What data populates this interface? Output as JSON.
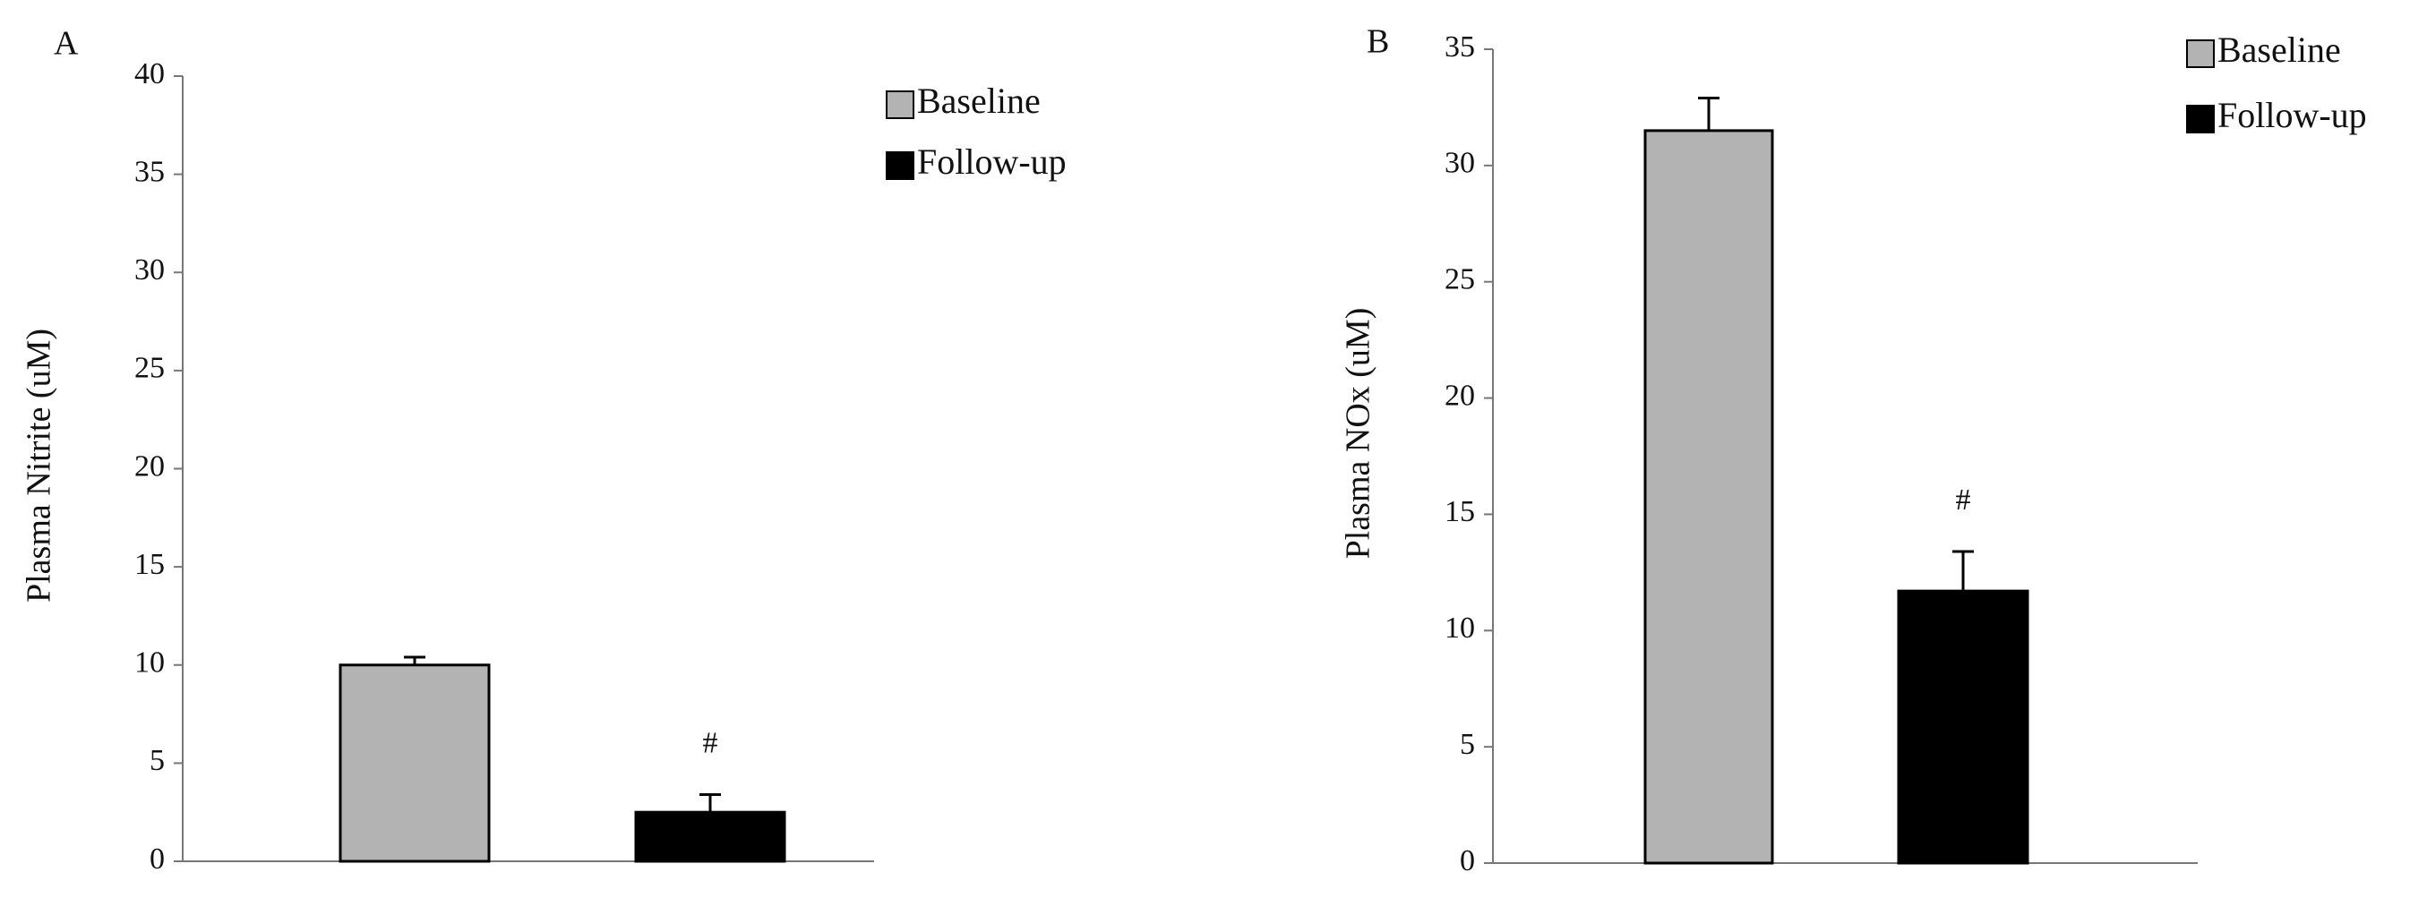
{
  "chart_data": [
    {
      "type": "bar",
      "panel_label": "A",
      "y_label": "Plasma Nitrite (uM)",
      "categories": [
        null
      ],
      "series": [
        {
          "name": "Baseline",
          "color": "#b3b3b3",
          "values": [
            10.0
          ],
          "errors": [
            0.4
          ]
        },
        {
          "name": "Follow-up",
          "color": "#000000",
          "values": [
            2.5
          ],
          "errors": [
            0.9
          ]
        }
      ],
      "annotation": "#",
      "ylim": [
        0,
        40
      ],
      "yticks": [
        0,
        5,
        10,
        15,
        20,
        25,
        30,
        35,
        40
      ]
    },
    {
      "type": "bar",
      "panel_label": "B",
      "y_label": "Plasma NOx (uM)",
      "categories": [
        null
      ],
      "series": [
        {
          "name": "Baseline",
          "color": "#b3b3b3",
          "values": [
            31.5
          ],
          "errors": [
            1.4
          ]
        },
        {
          "name": "Follow-up",
          "color": "#000000",
          "values": [
            11.7
          ],
          "errors": [
            1.7
          ]
        }
      ],
      "annotation": "#",
      "ylim": [
        0,
        35
      ],
      "yticks": [
        0,
        5,
        10,
        15,
        20,
        25,
        30,
        35
      ]
    }
  ]
}
